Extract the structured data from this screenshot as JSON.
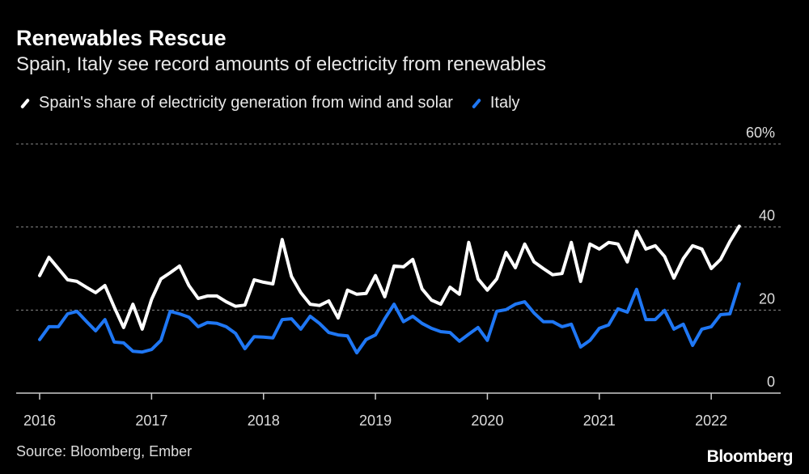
{
  "header": {
    "title": "Renewables Rescue",
    "subtitle": "Spain, Italy see record amounts of electricity from renewables"
  },
  "footer": {
    "source": "Source: Bloomberg, Ember",
    "logo": "Bloomberg"
  },
  "chart_data": {
    "type": "line",
    "title": "Renewables Rescue",
    "subtitle": "Spain, Italy see record amounts of electricity from renewables",
    "x_start": "2016-01",
    "frequency": "monthly",
    "x_ticks": [
      "2016",
      "2017",
      "2018",
      "2019",
      "2020",
      "2021",
      "2022"
    ],
    "y_ticks": [
      "0",
      "20",
      "40",
      "60%"
    ],
    "ylim": [
      0,
      60
    ],
    "grid": true,
    "legend_placement": "top-left",
    "series": [
      {
        "name": "Spain's share of electricity generation from wind and solar",
        "color": "#ffffff",
        "values": [
          28.3,
          32.7,
          30,
          27.3,
          26.9,
          25.5,
          24.2,
          25.9,
          20.7,
          15.8,
          21.4,
          15.4,
          22.6,
          27.5,
          29,
          30.6,
          25.9,
          22.8,
          23.4,
          23.4,
          22,
          20.9,
          21.2,
          27.3,
          26.7,
          26.3,
          37,
          28.1,
          24.2,
          21.4,
          21.1,
          22.2,
          18.1,
          24.8,
          23.8,
          24,
          28.3,
          23.2,
          30.6,
          30.4,
          32.2,
          25.1,
          22.4,
          21.4,
          25.5,
          23.8,
          36.3,
          27.5,
          24.8,
          27.5,
          33.9,
          30.2,
          35.9,
          31.6,
          30,
          28.5,
          28.8,
          36.3,
          26.9,
          35.9,
          34.7,
          36.3,
          35.9,
          31.6,
          39,
          34.7,
          35.5,
          32.9,
          27.7,
          32.4,
          35.5,
          34.7,
          30,
          32.2,
          36.5,
          40.2
        ]
      },
      {
        "name": "Italy",
        "color": "#1f77f4",
        "values": [
          12.9,
          16,
          16,
          19.1,
          19.7,
          17.3,
          15,
          17.7,
          12.3,
          12.1,
          10.1,
          9.9,
          10.5,
          12.7,
          19.7,
          19.1,
          18.3,
          16,
          17,
          16.8,
          16,
          14.4,
          10.7,
          13.6,
          13.5,
          13.3,
          17.7,
          17.9,
          15.4,
          18.5,
          16.8,
          14.6,
          14,
          13.8,
          9.7,
          12.9,
          14,
          17.9,
          21.4,
          17.2,
          18.5,
          16.8,
          15.6,
          14.8,
          14.6,
          12.5,
          14.2,
          15.8,
          12.7,
          19.7,
          20.1,
          21.4,
          22,
          19.3,
          17.2,
          17.2,
          16,
          16.6,
          11.1,
          12.7,
          15.6,
          16.4,
          20.3,
          19.5,
          25,
          17.7,
          17.7,
          19.9,
          15.4,
          16.6,
          11.5,
          15.4,
          16,
          18.9,
          19.1,
          26.3
        ]
      }
    ]
  }
}
